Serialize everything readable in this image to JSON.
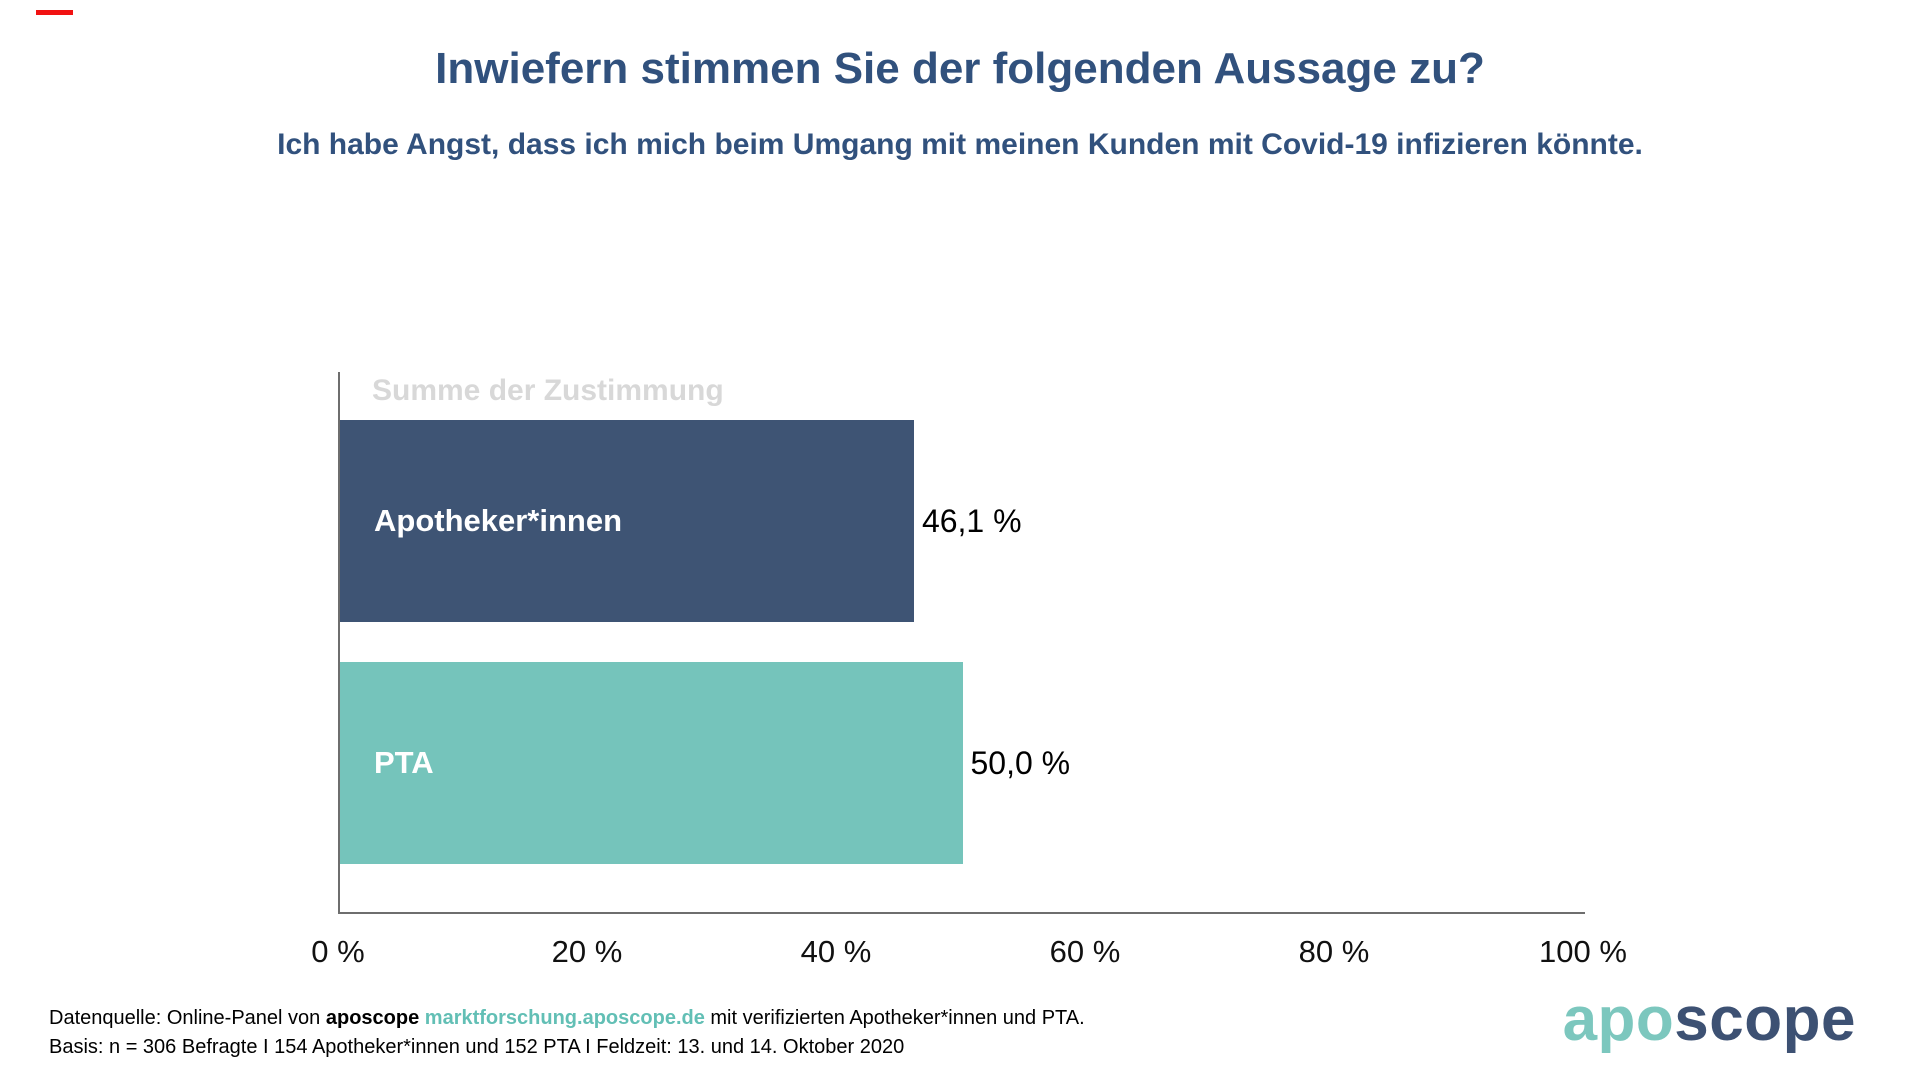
{
  "decoration": {
    "red_dash_color": "#f11212"
  },
  "title": "Inwiefern stimmen Sie der folgenden Aussage zu?",
  "subtitle": "Ich habe Angst, dass ich mich beim Umgang mit meinen Kunden mit Covid-19 infizieren könnte.",
  "chart_data": {
    "type": "bar",
    "orientation": "horizontal",
    "title": "Summe der Zustimmung",
    "categories": [
      "Apotheker*innen",
      "PTA"
    ],
    "values": [
      46.1,
      50.0
    ],
    "value_labels": [
      "46,1 %",
      "50,0 %"
    ],
    "bar_colors": [
      "#3e5474",
      "#75c4bb"
    ],
    "xlim": [
      0,
      100
    ],
    "x_ticks": [
      "0 %",
      "20 %",
      "40 %",
      "60 %",
      "80 %",
      "100 %"
    ],
    "x_tick_values": [
      0,
      20,
      40,
      60,
      80,
      100
    ],
    "grid": false,
    "legend": "none",
    "title_color": "#d8d8d8",
    "axis_color": "#6e6e6e"
  },
  "footer": {
    "line1_prefix": "Datenquelle: Online-Panel von ",
    "line1_brand": "aposcope",
    "line1_space": " ",
    "line1_link": "marktforschung.aposcope.de",
    "line1_suffix": " mit verifizierten Apotheker*innen und PTA.",
    "line2": "Basis: n = 306 Befragte I 154 Apotheker*innen und 152 PTA I Feldzeit: 13. und 14. Oktober 2020",
    "link_color": "#62bfb5"
  },
  "logo": {
    "part1": "apo",
    "part2": "scope",
    "teal": "#7cc7be",
    "navy": "#3d5173"
  },
  "colors": {
    "heading": "#31517d",
    "background": "#ffffff"
  }
}
